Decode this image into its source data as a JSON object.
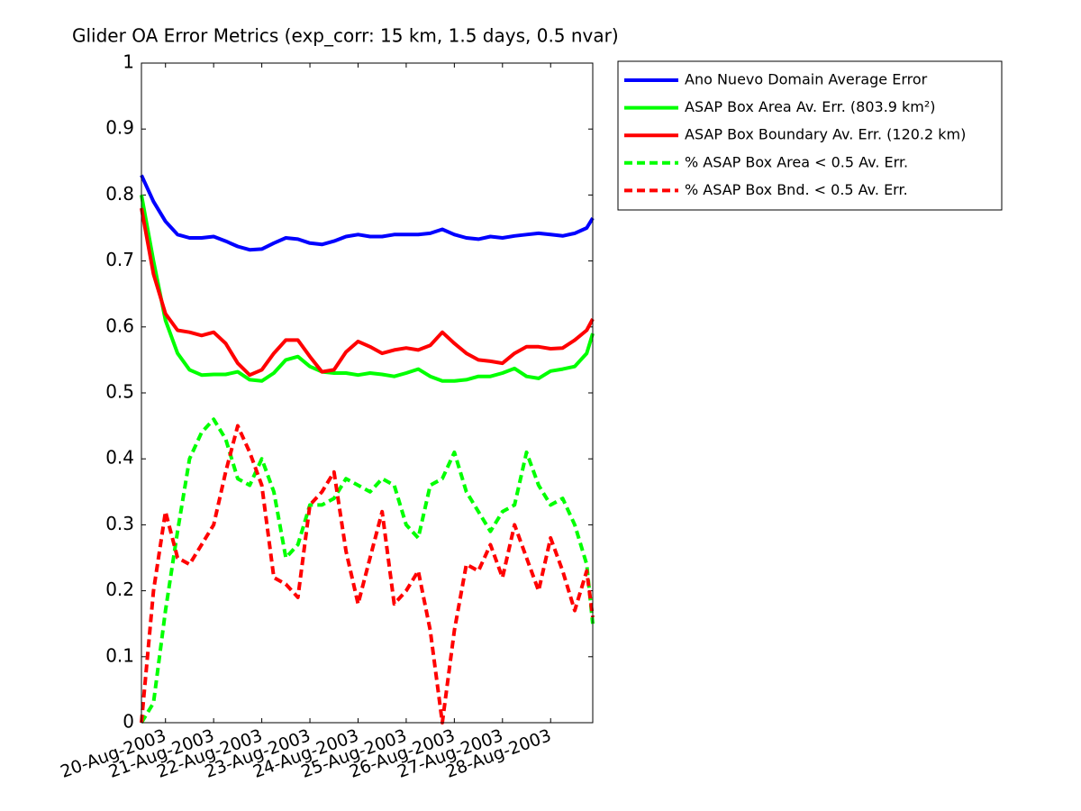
{
  "chart_data": {
    "type": "line",
    "title": "Glider OA Error Metrics (exp_corr: 15 km, 1.5 days, 0.5 nvar)",
    "x": [
      "2003-08-19T12:00",
      "2003-08-19T18:00",
      "2003-08-20T00:00",
      "2003-08-20T06:00",
      "2003-08-20T12:00",
      "2003-08-20T18:00",
      "2003-08-21T00:00",
      "2003-08-21T06:00",
      "2003-08-21T12:00",
      "2003-08-21T18:00",
      "2003-08-22T00:00",
      "2003-08-22T06:00",
      "2003-08-22T12:00",
      "2003-08-22T18:00",
      "2003-08-23T00:00",
      "2003-08-23T06:00",
      "2003-08-23T12:00",
      "2003-08-23T18:00",
      "2003-08-24T00:00",
      "2003-08-24T06:00",
      "2003-08-24T12:00",
      "2003-08-24T18:00",
      "2003-08-25T00:00",
      "2003-08-25T06:00",
      "2003-08-25T12:00",
      "2003-08-25T18:00",
      "2003-08-26T00:00",
      "2003-08-26T06:00",
      "2003-08-26T12:00",
      "2003-08-26T18:00",
      "2003-08-27T00:00",
      "2003-08-27T06:00",
      "2003-08-27T12:00",
      "2003-08-27T18:00",
      "2003-08-28T00:00",
      "2003-08-28T06:00",
      "2003-08-28T12:00",
      "2003-08-28T18:00",
      "2003-08-28T21:00"
    ],
    "series": [
      {
        "name": "Ano Nuevo Domain Average Error",
        "color": "#0000ff",
        "style": "solid",
        "values": [
          0.83,
          0.79,
          0.76,
          0.74,
          0.735,
          0.735,
          0.737,
          0.73,
          0.722,
          0.717,
          0.718,
          0.727,
          0.735,
          0.733,
          0.727,
          0.725,
          0.73,
          0.737,
          0.74,
          0.737,
          0.737,
          0.74,
          0.74,
          0.74,
          0.742,
          0.748,
          0.74,
          0.735,
          0.733,
          0.737,
          0.735,
          0.738,
          0.74,
          0.742,
          0.74,
          0.738,
          0.742,
          0.75,
          0.765
        ]
      },
      {
        "name": "ASAP Box Area Av. Err. (803.9 km²)",
        "color": "#00ff00",
        "style": "solid",
        "values": [
          0.8,
          0.7,
          0.61,
          0.56,
          0.535,
          0.527,
          0.528,
          0.528,
          0.532,
          0.52,
          0.518,
          0.53,
          0.55,
          0.555,
          0.54,
          0.532,
          0.53,
          0.53,
          0.527,
          0.53,
          0.528,
          0.525,
          0.53,
          0.536,
          0.525,
          0.518,
          0.518,
          0.52,
          0.525,
          0.525,
          0.53,
          0.537,
          0.525,
          0.522,
          0.533,
          0.536,
          0.54,
          0.56,
          0.59
        ]
      },
      {
        "name": "ASAP Box Boundary Av. Err. (120.2 km)",
        "color": "#ff0000",
        "style": "solid",
        "values": [
          0.78,
          0.68,
          0.62,
          0.595,
          0.592,
          0.587,
          0.592,
          0.575,
          0.545,
          0.527,
          0.535,
          0.56,
          0.58,
          0.58,
          0.555,
          0.532,
          0.535,
          0.562,
          0.578,
          0.57,
          0.56,
          0.565,
          0.568,
          0.565,
          0.572,
          0.592,
          0.575,
          0.56,
          0.55,
          0.548,
          0.545,
          0.56,
          0.57,
          0.57,
          0.567,
          0.568,
          0.58,
          0.595,
          0.612
        ]
      },
      {
        "name": "% ASAP Box Area < 0.5 Av. Err.",
        "color": "#00ff00",
        "style": "dashed",
        "values": [
          0.0,
          0.03,
          0.17,
          0.29,
          0.4,
          0.44,
          0.46,
          0.43,
          0.37,
          0.36,
          0.4,
          0.35,
          0.25,
          0.27,
          0.33,
          0.33,
          0.34,
          0.37,
          0.36,
          0.35,
          0.37,
          0.36,
          0.3,
          0.28,
          0.36,
          0.37,
          0.41,
          0.35,
          0.32,
          0.29,
          0.32,
          0.33,
          0.41,
          0.36,
          0.33,
          0.34,
          0.3,
          0.24,
          0.15
        ]
      },
      {
        "name": "% ASAP Box Bnd. < 0.5 Av. Err.",
        "color": "#ff0000",
        "style": "dashed",
        "values": [
          0.0,
          0.2,
          0.32,
          0.25,
          0.24,
          0.27,
          0.3,
          0.38,
          0.45,
          0.41,
          0.36,
          0.22,
          0.21,
          0.19,
          0.33,
          0.35,
          0.38,
          0.26,
          0.18,
          0.25,
          0.32,
          0.18,
          0.2,
          0.23,
          0.14,
          0.0,
          0.14,
          0.24,
          0.23,
          0.27,
          0.22,
          0.3,
          0.25,
          0.2,
          0.28,
          0.23,
          0.17,
          0.23,
          0.16
        ]
      }
    ],
    "xlim": [
      "2003-08-19T12:00",
      "2003-08-28T21:00"
    ],
    "xticks": [
      {
        "value": "2003-08-20",
        "label": "20-Aug-2003"
      },
      {
        "value": "2003-08-21",
        "label": "21-Aug-2003"
      },
      {
        "value": "2003-08-22",
        "label": "22-Aug-2003"
      },
      {
        "value": "2003-08-23",
        "label": "23-Aug-2003"
      },
      {
        "value": "2003-08-24",
        "label": "24-Aug-2003"
      },
      {
        "value": "2003-08-25",
        "label": "25-Aug-2003"
      },
      {
        "value": "2003-08-26",
        "label": "26-Aug-2003"
      },
      {
        "value": "2003-08-27",
        "label": "27-Aug-2003"
      },
      {
        "value": "2003-08-28",
        "label": "28-Aug-2003"
      }
    ],
    "ylim": [
      0,
      1
    ],
    "yticks": [
      0,
      0.1,
      0.2,
      0.3,
      0.4,
      0.5,
      0.6,
      0.7,
      0.8,
      0.9,
      1
    ],
    "grid": false,
    "legend": "outside-right"
  }
}
